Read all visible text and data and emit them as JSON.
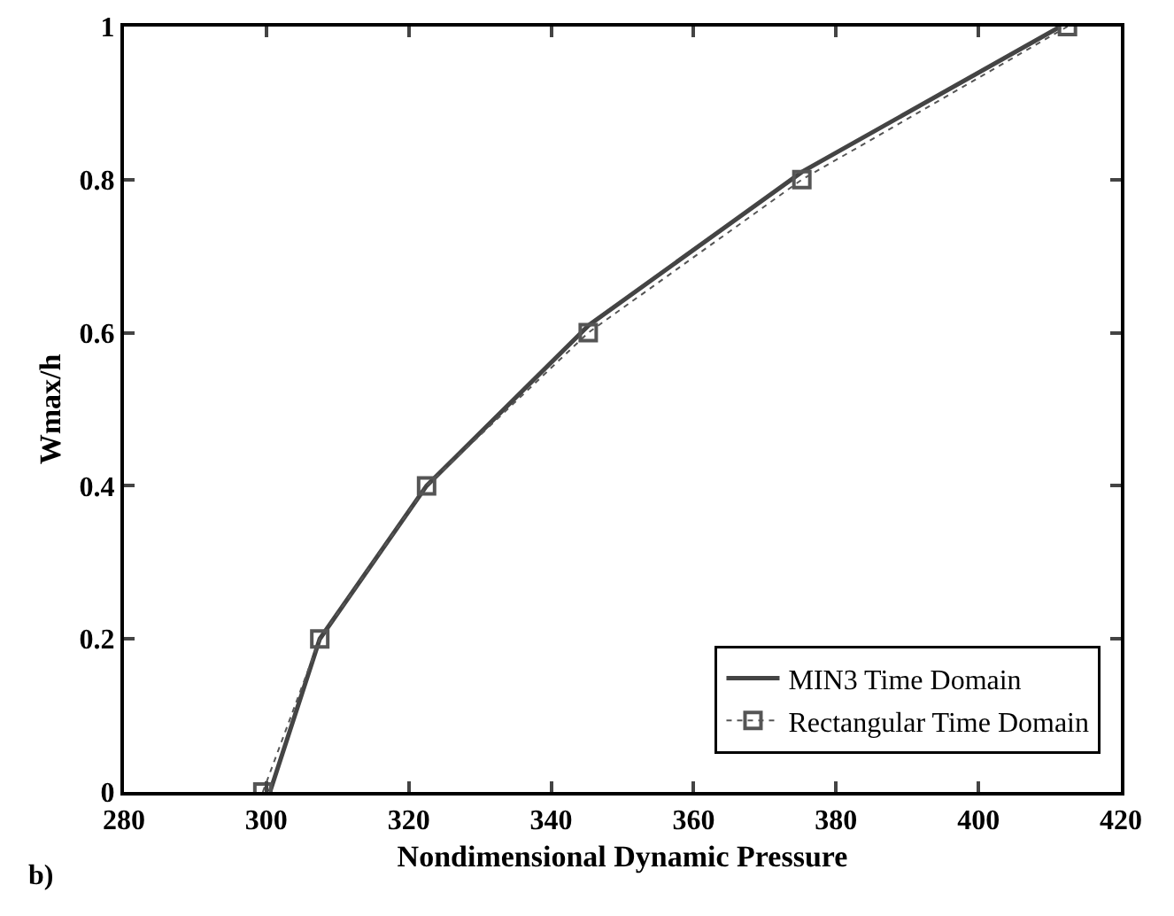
{
  "chart_data": {
    "type": "line",
    "xlabel": "Nondimensional Dynamic Pressure",
    "ylabel": "Wmax/h",
    "annotations": [
      "b)"
    ],
    "xlim": [
      280,
      420
    ],
    "xticks": [
      280,
      300,
      320,
      340,
      360,
      380,
      400,
      420
    ],
    "ylim": [
      0,
      1
    ],
    "yticks": [
      0,
      {
        "value": 0.2,
        "label": "0.2"
      },
      {
        "value": 0.4,
        "label": "0.4"
      },
      {
        "value": 0.6,
        "label": "0.6"
      },
      {
        "value": 0.8,
        "label": "0.8"
      },
      1
    ],
    "grid": false,
    "legend": "bottom right",
    "series": [
      {
        "name": "MIN3 Time Domain",
        "color": "#444444",
        "line_style": "solid",
        "marker": "none",
        "x": [
          300.5,
          307.5,
          322.5,
          345.3,
          375.2,
          411.5
        ],
        "values": [
          0,
          0.2,
          0.4,
          0.61,
          0.81,
          1
        ]
      },
      {
        "name": "Rectangular Time Domain",
        "color": "#555555",
        "line_style": "dotted",
        "marker": "square",
        "x": [
          299.5,
          307.5,
          322.5,
          345.2,
          375.2,
          412.5
        ],
        "values": [
          0,
          0.2,
          0.4,
          0.6,
          0.8,
          1
        ]
      }
    ]
  }
}
